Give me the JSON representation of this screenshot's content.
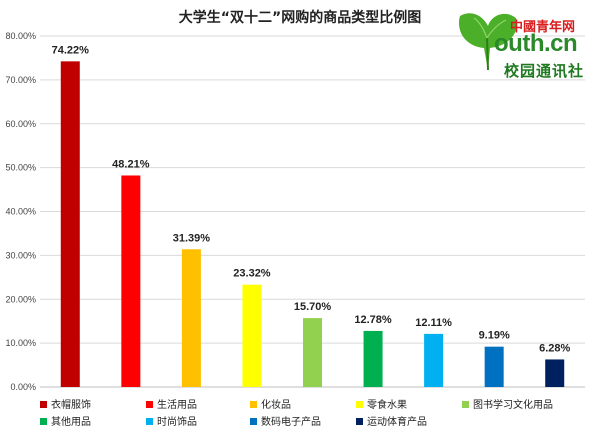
{
  "logo": {
    "top": "中國青年网",
    "mid": "outh.cn",
    "bottom": "校园通讯社"
  },
  "chart_data": {
    "type": "bar",
    "title": "大学生“双十二”网购的商品类型比例图",
    "xlabel": "",
    "ylabel": "",
    "ylim": [
      0,
      80
    ],
    "yticks": [
      "0.00%",
      "10.00%",
      "20.00%",
      "30.00%",
      "40.00%",
      "50.00%",
      "60.00%",
      "70.00%",
      "80.00%"
    ],
    "grid": true,
    "legend_position": "bottom",
    "categories": [
      "衣帽服饰",
      "生活用品",
      "化妆品",
      "零食水果",
      "图书学习文化用品",
      "其他用品",
      "时尚饰品",
      "数码电子产品",
      "运动体育产品"
    ],
    "values": [
      74.22,
      48.21,
      31.39,
      23.32,
      15.7,
      12.78,
      12.11,
      9.19,
      6.28
    ],
    "labels": [
      "74.22%",
      "48.21%",
      "31.39%",
      "23.32%",
      "15.70%",
      "12.78%",
      "12.11%",
      "9.19%",
      "6.28%"
    ],
    "colors": [
      "#c00000",
      "#ff0000",
      "#ffc000",
      "#ffff00",
      "#92d050",
      "#00b050",
      "#00b0f0",
      "#0070c0",
      "#002060"
    ]
  }
}
